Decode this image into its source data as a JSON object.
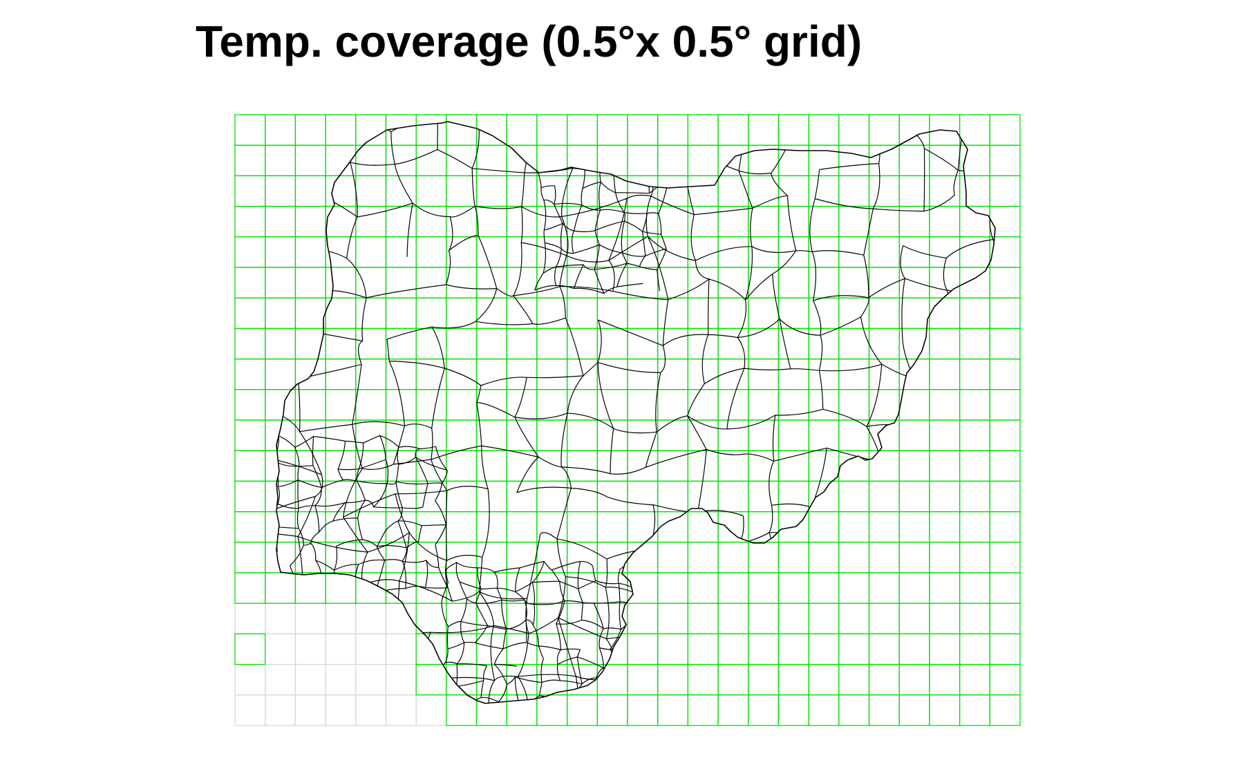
{
  "title": "Temp. coverage (0.5°x 0.5° grid)",
  "colors": {
    "background": "#ffffff",
    "grid_covered": "#00e000",
    "grid_uncovered": "#d9d9d9",
    "boundaries": "#000000",
    "title": "#000000"
  },
  "grid": {
    "cell_size_degrees": 0.5,
    "columns": 26,
    "rows": 20,
    "uncovered_cells": [
      [
        0,
        16
      ],
      [
        1,
        16
      ],
      [
        2,
        16
      ],
      [
        3,
        16
      ],
      [
        4,
        16
      ],
      [
        5,
        16
      ],
      [
        1,
        17
      ],
      [
        2,
        17
      ],
      [
        3,
        17
      ],
      [
        4,
        17
      ],
      [
        5,
        17
      ],
      [
        0,
        18
      ],
      [
        1,
        18
      ],
      [
        2,
        18
      ],
      [
        3,
        18
      ],
      [
        4,
        18
      ],
      [
        5,
        18
      ],
      [
        0,
        19
      ],
      [
        1,
        19
      ],
      [
        2,
        19
      ],
      [
        3,
        19
      ],
      [
        4,
        19
      ],
      [
        5,
        19
      ],
      [
        6,
        19
      ]
    ]
  },
  "map": {
    "boundary_style": "administrative-boundaries",
    "country_outline": "nigeria-outline"
  }
}
